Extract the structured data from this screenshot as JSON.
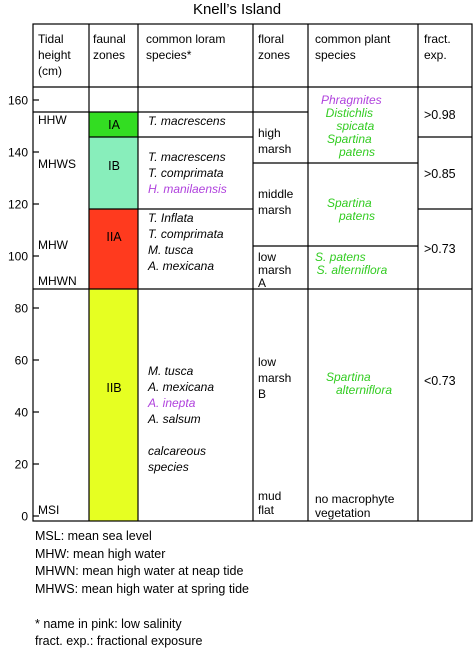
{
  "title": "Knell’s Island",
  "headers": {
    "tidal_height": [
      "Tidal",
      "height",
      "(cm)"
    ],
    "faunal_zones": [
      "faunal",
      "zones"
    ],
    "loram_species": [
      "common loram",
      "species*"
    ],
    "floral_zones": [
      "floral",
      "zones"
    ],
    "plant_species": [
      "common plant",
      "species"
    ],
    "fract_exp": [
      "fract.",
      "exp."
    ]
  },
  "axis": {
    "ticks": [
      "160",
      "140",
      "120",
      "100",
      "80",
      "60",
      "40",
      "20",
      "0"
    ],
    "tick_values": [
      160,
      140,
      120,
      100,
      80,
      60,
      40,
      20,
      0
    ],
    "levels": [
      {
        "label": "HHW",
        "value": 150
      },
      {
        "label": "MHWS",
        "value": 133
      },
      {
        "label": "MHW",
        "value": 102
      },
      {
        "label": "MHWN",
        "value": 88
      },
      {
        "label": "MSI",
        "value": 0
      }
    ]
  },
  "faunal_zones": [
    {
      "label": "IA",
      "top": 145,
      "bottom": 138,
      "color": "#33dd22"
    },
    {
      "label": "IB",
      "top": 138,
      "bottom": 112,
      "color": "#88eebb"
    },
    {
      "label": "IIA",
      "top": 112,
      "bottom": 86,
      "color": "#ff3a1e"
    },
    {
      "label": "IIB",
      "top": 86,
      "bottom": 0,
      "color": "#e6ff22"
    }
  ],
  "loram_species": [
    {
      "zone": "IA",
      "lines": [
        {
          "text": "T. macrescens",
          "color": "#000000"
        }
      ]
    },
    {
      "zone": "IB",
      "lines": [
        {
          "text": "T. macrescens",
          "color": "#000000"
        },
        {
          "text": "T. comprimata",
          "color": "#000000"
        },
        {
          "text": "H. manilaensis",
          "color": "#b042dd"
        }
      ]
    },
    {
      "zone": "IIA",
      "lines": [
        {
          "text": "T. Inflata",
          "color": "#000000"
        },
        {
          "text": "T. comprimata",
          "color": "#000000"
        },
        {
          "text": "M. tusca",
          "color": "#000000"
        },
        {
          "text": "A. mexicana",
          "color": "#000000"
        }
      ]
    },
    {
      "zone": "IIB",
      "lines": [
        {
          "text": "M. tusca",
          "color": "#000000"
        },
        {
          "text": "A. mexicana",
          "color": "#000000"
        },
        {
          "text": "A. inepta",
          "color": "#b042dd"
        },
        {
          "text": "A. salsum",
          "color": "#000000"
        },
        {
          "text": "",
          "color": "#000000"
        },
        {
          "text": "calcareous",
          "color": "#000000"
        },
        {
          "text": "species",
          "color": "#000000"
        }
      ]
    }
  ],
  "floral_zones": [
    {
      "lines": [
        "high",
        "marsh"
      ]
    },
    {
      "lines": [
        "middle",
        "marsh"
      ]
    },
    {
      "lines": [
        "low",
        "marsh",
        "A"
      ]
    },
    {
      "lines": [
        "low",
        "marsh",
        "B"
      ]
    },
    {
      "lines": [
        "mud",
        "flat"
      ]
    }
  ],
  "plant_species": [
    {
      "lines": [
        {
          "text": "Phragmites",
          "color": "#b042dd"
        },
        {
          "text": "Distichlis",
          "color": "#33cc22"
        },
        {
          "text": "spicata",
          "color": "#33cc22"
        },
        {
          "text": "Spartina",
          "color": "#33cc22"
        },
        {
          "text": "patens",
          "color": "#33cc22"
        }
      ]
    },
    {
      "lines": [
        {
          "text": "Spartina",
          "color": "#33cc22"
        },
        {
          "text": "patens",
          "color": "#33cc22"
        }
      ]
    },
    {
      "lines": [
        {
          "text": "S. patens",
          "color": "#33cc22"
        },
        {
          "text": "S. alterniflora",
          "color": "#33cc22"
        }
      ]
    },
    {
      "lines": [
        {
          "text": "Spartina",
          "color": "#33cc22"
        },
        {
          "text": "alterniflora",
          "color": "#33cc22"
        }
      ]
    },
    {
      "lines": [
        {
          "text": "no macrophyte",
          "color": "#000000"
        },
        {
          "text": "vegetation",
          "color": "#000000"
        }
      ]
    }
  ],
  "fract_exp": [
    ">0.98",
    ">0.85",
    ">0.73",
    "<0.73"
  ],
  "notes": [
    "MSL: mean sea level",
    "MHW: mean high water",
    "MHWN: mean high water at neap tide",
    "MHWS: mean high water at spring tide",
    "",
    "* name in pink: low salinity",
    "fract. exp.: fractional exposure"
  ]
}
